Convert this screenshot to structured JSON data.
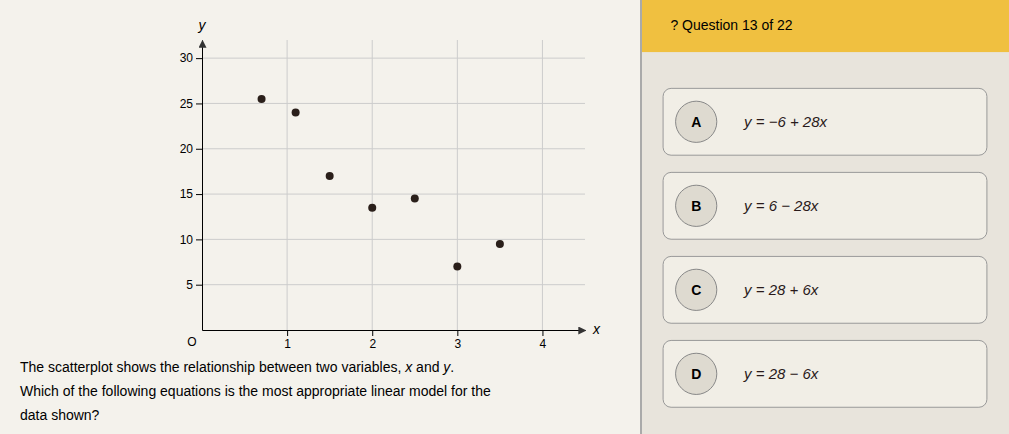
{
  "chart_data": {
    "type": "scatter",
    "x": [
      0.7,
      1.1,
      1.5,
      2.0,
      2.5,
      3.0,
      3.5
    ],
    "values": [
      25.5,
      24.0,
      17.0,
      13.5,
      14.5,
      7.0,
      9.5
    ],
    "color": "#2a1f1a",
    "xlim": [
      0,
      4.5
    ],
    "ylim": [
      0,
      32
    ],
    "xticks": [
      1,
      2,
      3,
      4
    ],
    "yticks": [
      5,
      10,
      15,
      20,
      25,
      30
    ],
    "xlabel": "x",
    "ylabel": "y",
    "grid": true,
    "annotations": [
      "O",
      "? Question 13 of 22",
      "The scatterplot shows the relationship between two variables, ",
      "x",
      " and ",
      "y",
      ".",
      "Which of the following equations is the most appropriate linear model for the",
      "data shown?",
      "A",
      "y = −6 + 28x",
      "B",
      "y = 6 − 28x",
      "C",
      "y = 28 + 6x",
      "D",
      "y = 28 − 6x"
    ]
  }
}
